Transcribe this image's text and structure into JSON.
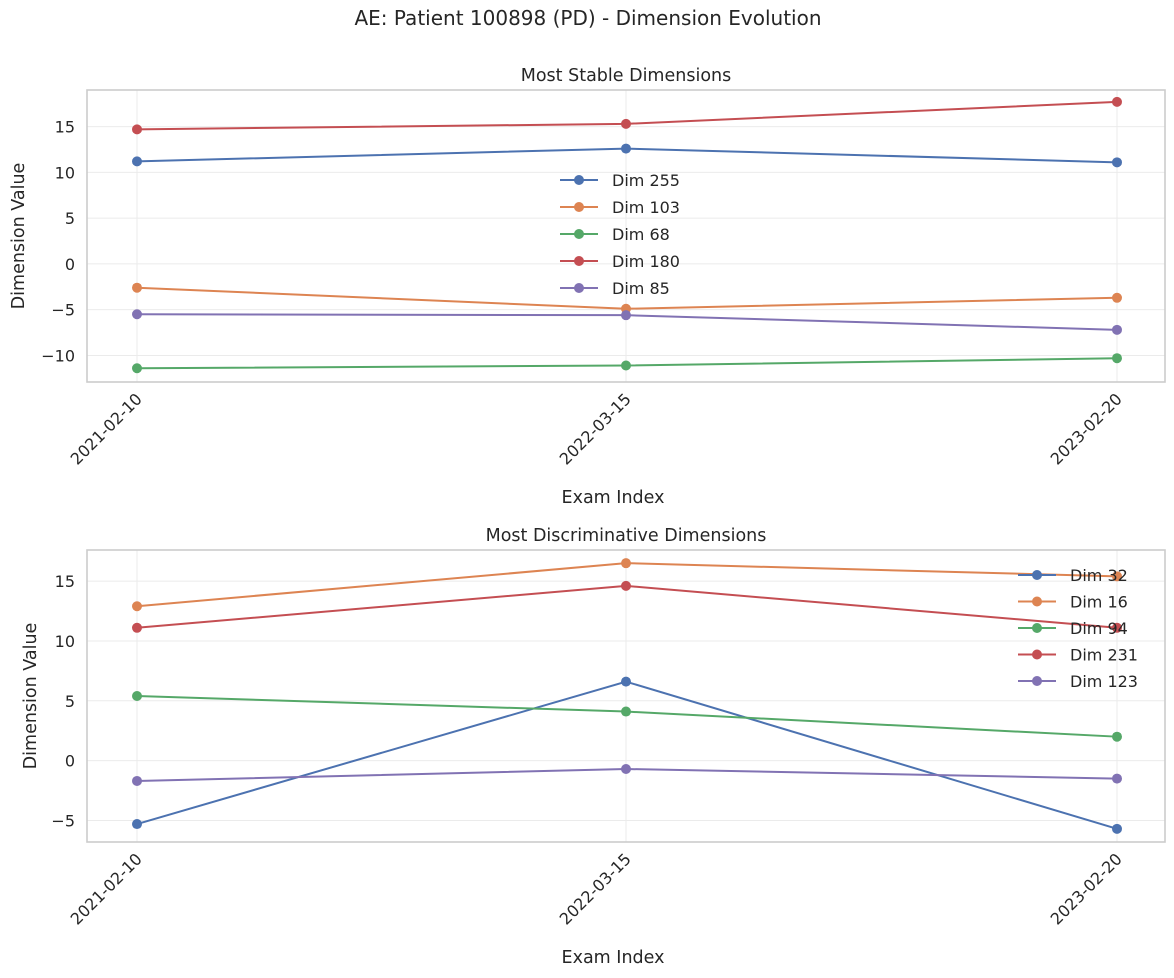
{
  "figure": {
    "title": "AE: Patient 100898 (PD) - Dimension Evolution"
  },
  "chart_data": [
    {
      "type": "line",
      "title": "Most Stable Dimensions",
      "xlabel": "Exam Index",
      "ylabel": "Dimension Value",
      "categories": [
        "2021-02-10",
        "2022-03-15",
        "2023-02-20"
      ],
      "ylim": [
        -12.9,
        19.0
      ],
      "yticks": [
        15,
        10,
        5,
        0,
        -5,
        -10
      ],
      "ytick_labels": [
        "15",
        "10",
        "5",
        "0",
        "−5",
        "−10"
      ],
      "grid": true,
      "legend_position": "center",
      "series": [
        {
          "name": "Dim 255",
          "color": "#4c72b0",
          "values": [
            11.2,
            12.6,
            11.1
          ]
        },
        {
          "name": "Dim 103",
          "color": "#dd8452",
          "values": [
            -2.6,
            -4.9,
            -3.7
          ]
        },
        {
          "name": "Dim 68",
          "color": "#55a868",
          "values": [
            -11.4,
            -11.1,
            -10.3
          ]
        },
        {
          "name": "Dim 180",
          "color": "#c44e52",
          "values": [
            14.7,
            15.3,
            17.7
          ]
        },
        {
          "name": "Dim 85",
          "color": "#8172b3",
          "values": [
            -5.5,
            -5.6,
            -7.2
          ]
        }
      ]
    },
    {
      "type": "line",
      "title": "Most Discriminative Dimensions",
      "xlabel": "Exam Index",
      "ylabel": "Dimension Value",
      "categories": [
        "2021-02-10",
        "2022-03-15",
        "2023-02-20"
      ],
      "ylim": [
        -6.8,
        17.6
      ],
      "yticks": [
        15,
        10,
        5,
        0,
        -5
      ],
      "ytick_labels": [
        "15",
        "10",
        "5",
        "0",
        "−5"
      ],
      "grid": true,
      "legend_position": "upper right",
      "series": [
        {
          "name": "Dim 32",
          "color": "#4c72b0",
          "values": [
            -5.3,
            6.6,
            -5.7
          ]
        },
        {
          "name": "Dim 16",
          "color": "#dd8452",
          "values": [
            12.9,
            16.5,
            15.4
          ]
        },
        {
          "name": "Dim 94",
          "color": "#55a868",
          "values": [
            5.4,
            4.1,
            2.0
          ]
        },
        {
          "name": "Dim 231",
          "color": "#c44e52",
          "values": [
            11.1,
            14.6,
            11.1
          ]
        },
        {
          "name": "Dim 123",
          "color": "#8172b3",
          "values": [
            -1.7,
            -0.7,
            -1.5
          ]
        }
      ]
    }
  ]
}
